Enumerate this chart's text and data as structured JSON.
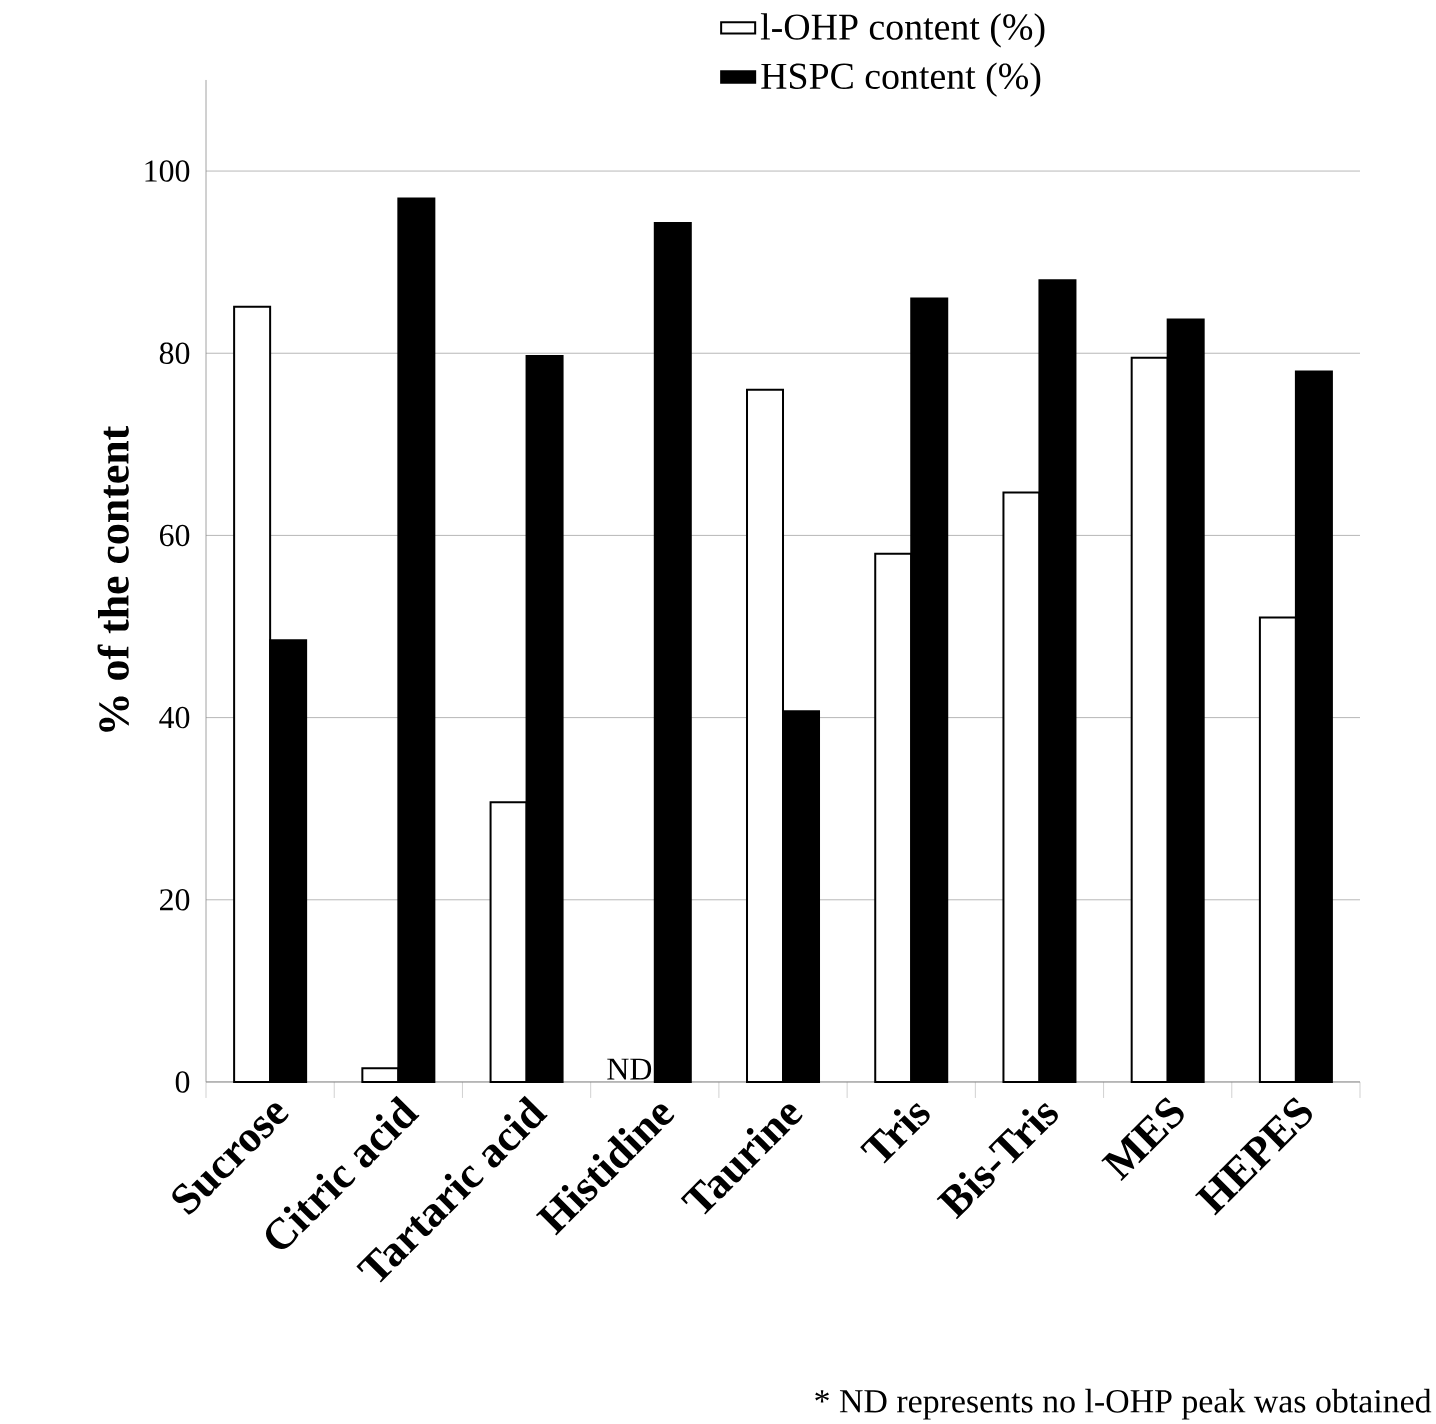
{
  "chart_data": {
    "type": "bar",
    "ylabel": "% of the content",
    "categories": [
      "Sucrose",
      "Citric acid",
      "Tartaric acid",
      "Histidine",
      "Taurine",
      "Tris",
      "Bis-Tris",
      "MES",
      "HEPES"
    ],
    "series": [
      {
        "name": "l-OHP content (%)",
        "color": "#ffffff",
        "values": [
          85.1,
          1.5,
          30.7,
          null,
          76.0,
          58.0,
          64.7,
          79.5,
          51.0
        ]
      },
      {
        "name": "HSPC content (%)",
        "color": "#000000",
        "values": [
          48.5,
          97.0,
          79.7,
          94.3,
          40.7,
          86.0,
          88.0,
          83.7,
          78.0
        ]
      }
    ],
    "ylim": [
      0,
      110
    ],
    "yticks": [
      0,
      20,
      40,
      60,
      80,
      100
    ],
    "grid": "y",
    "legend": "top right",
    "annotations": [
      {
        "text": "ND",
        "x": "Histidine",
        "y": 0
      },
      "* ND represents no l-OHP peak was obtained"
    ]
  }
}
